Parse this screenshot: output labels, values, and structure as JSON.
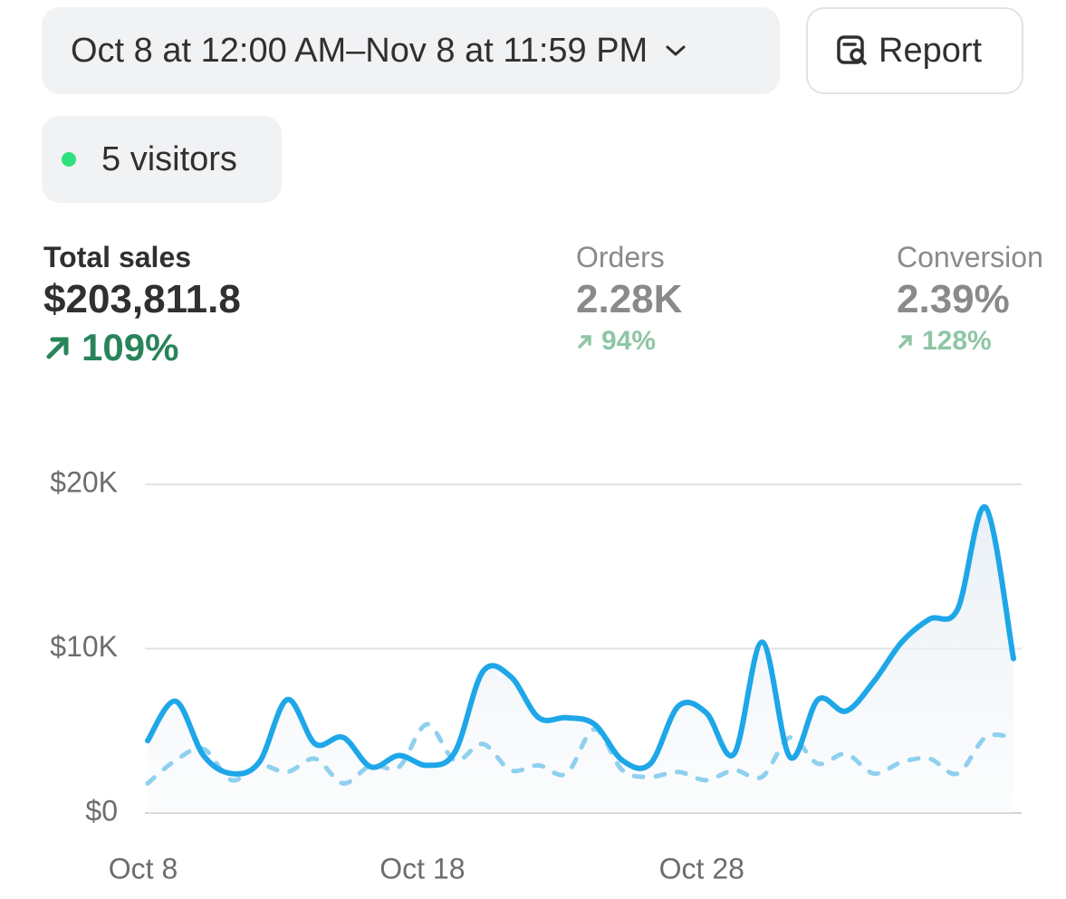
{
  "header": {
    "date_range": "Oct 8 at 12:00 AM–Nov 8 at 11:59 PM",
    "report": "Report",
    "visitors": "5 visitors"
  },
  "metrics": [
    {
      "label": "Total sales",
      "value": "$203,811.8",
      "change": "109%"
    },
    {
      "label": "Orders",
      "value": "2.28K",
      "change": "94%"
    },
    {
      "label": "Conversion",
      "value": "2.39%",
      "change": "128%"
    }
  ],
  "chart_data": {
    "type": "line",
    "categories": [
      "Oct 8",
      null,
      null,
      null,
      null,
      null,
      null,
      null,
      null,
      null,
      "Oct 18",
      null,
      null,
      null,
      null,
      null,
      null,
      null,
      null,
      null,
      "Oct 28",
      null,
      null,
      null,
      null,
      null,
      null,
      null,
      null,
      null,
      null,
      null
    ],
    "series": [
      {
        "color": "#1ea7e8",
        "style": "solid",
        "area": true,
        "values": [
          4400,
          6800,
          3500,
          2400,
          3100,
          6900,
          4200,
          4600,
          2800,
          3500,
          2900,
          3700,
          8600,
          8300,
          5800,
          5800,
          5400,
          3200,
          3000,
          6500,
          6100,
          3600,
          10400,
          3400,
          6900,
          6200,
          8000,
          10400,
          11800,
          12400,
          18600,
          9400
        ]
      },
      {
        "color": "#8fd0ef",
        "style": "dashed",
        "area": false,
        "values": [
          1800,
          3200,
          3900,
          2000,
          2900,
          2500,
          3300,
          1800,
          2900,
          2800,
          5400,
          3200,
          4200,
          2600,
          2900,
          2400,
          5100,
          2600,
          2200,
          2500,
          2000,
          2600,
          2200,
          4600,
          3000,
          3600,
          2400,
          3100,
          3300,
          2400,
          4600,
          4600
        ]
      }
    ],
    "ylim": [
      0,
      20000
    ],
    "yticks": [
      {
        "value": 0,
        "label": "$0"
      },
      {
        "value": 10000,
        "label": "$10K"
      },
      {
        "value": 20000,
        "label": "$20K"
      }
    ],
    "grid": true
  }
}
